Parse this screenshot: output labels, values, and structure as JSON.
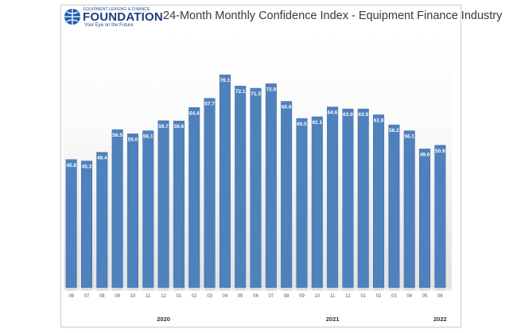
{
  "logo": {
    "small_text": "EQUIPMENT LEASING & FINANCE",
    "main_text": "FOUNDATION",
    "tagline": "Your Eye on the Future"
  },
  "chart_data": {
    "type": "bar",
    "title": "24-Month Monthly Confidence Index - Equipment Finance Industry",
    "categories": [
      "06",
      "07",
      "08",
      "09",
      "10",
      "11",
      "12",
      "01",
      "02",
      "03",
      "04",
      "05",
      "06",
      "07",
      "08",
      "09",
      "10",
      "11",
      "12",
      "01",
      "02",
      "03",
      "04",
      "05",
      "06"
    ],
    "values": [
      45.8,
      45.3,
      48.4,
      56.5,
      55.0,
      56.1,
      59.7,
      59.6,
      64.4,
      67.7,
      76.1,
      72.1,
      71.3,
      72.9,
      66.6,
      60.5,
      61.1,
      64.6,
      63.9,
      63.9,
      61.8,
      58.2,
      56.1,
      49.6,
      50.9
    ],
    "value_labels": [
      "45.8",
      "45.3",
      "48.4",
      "56.5",
      "55.0",
      "56.1",
      "59.7",
      "59.6",
      "64.4",
      "67.7",
      "76.1",
      "72.1",
      "71.3",
      "72.9",
      "66.6",
      "60.5",
      "61.1",
      "64.6",
      "63.9",
      "63.9",
      "61.8",
      "58.2",
      "56.1",
      "49.6",
      "50.9"
    ],
    "year_labels": [
      {
        "label": "2020",
        "category_index": 6
      },
      {
        "label": "2021",
        "category_index": 17
      },
      {
        "label": "2022",
        "category_index": 24
      }
    ],
    "ylim": [
      0,
      80
    ],
    "xlabel": "",
    "ylabel": "",
    "grid": false,
    "bar_color": "#4f81bd"
  }
}
